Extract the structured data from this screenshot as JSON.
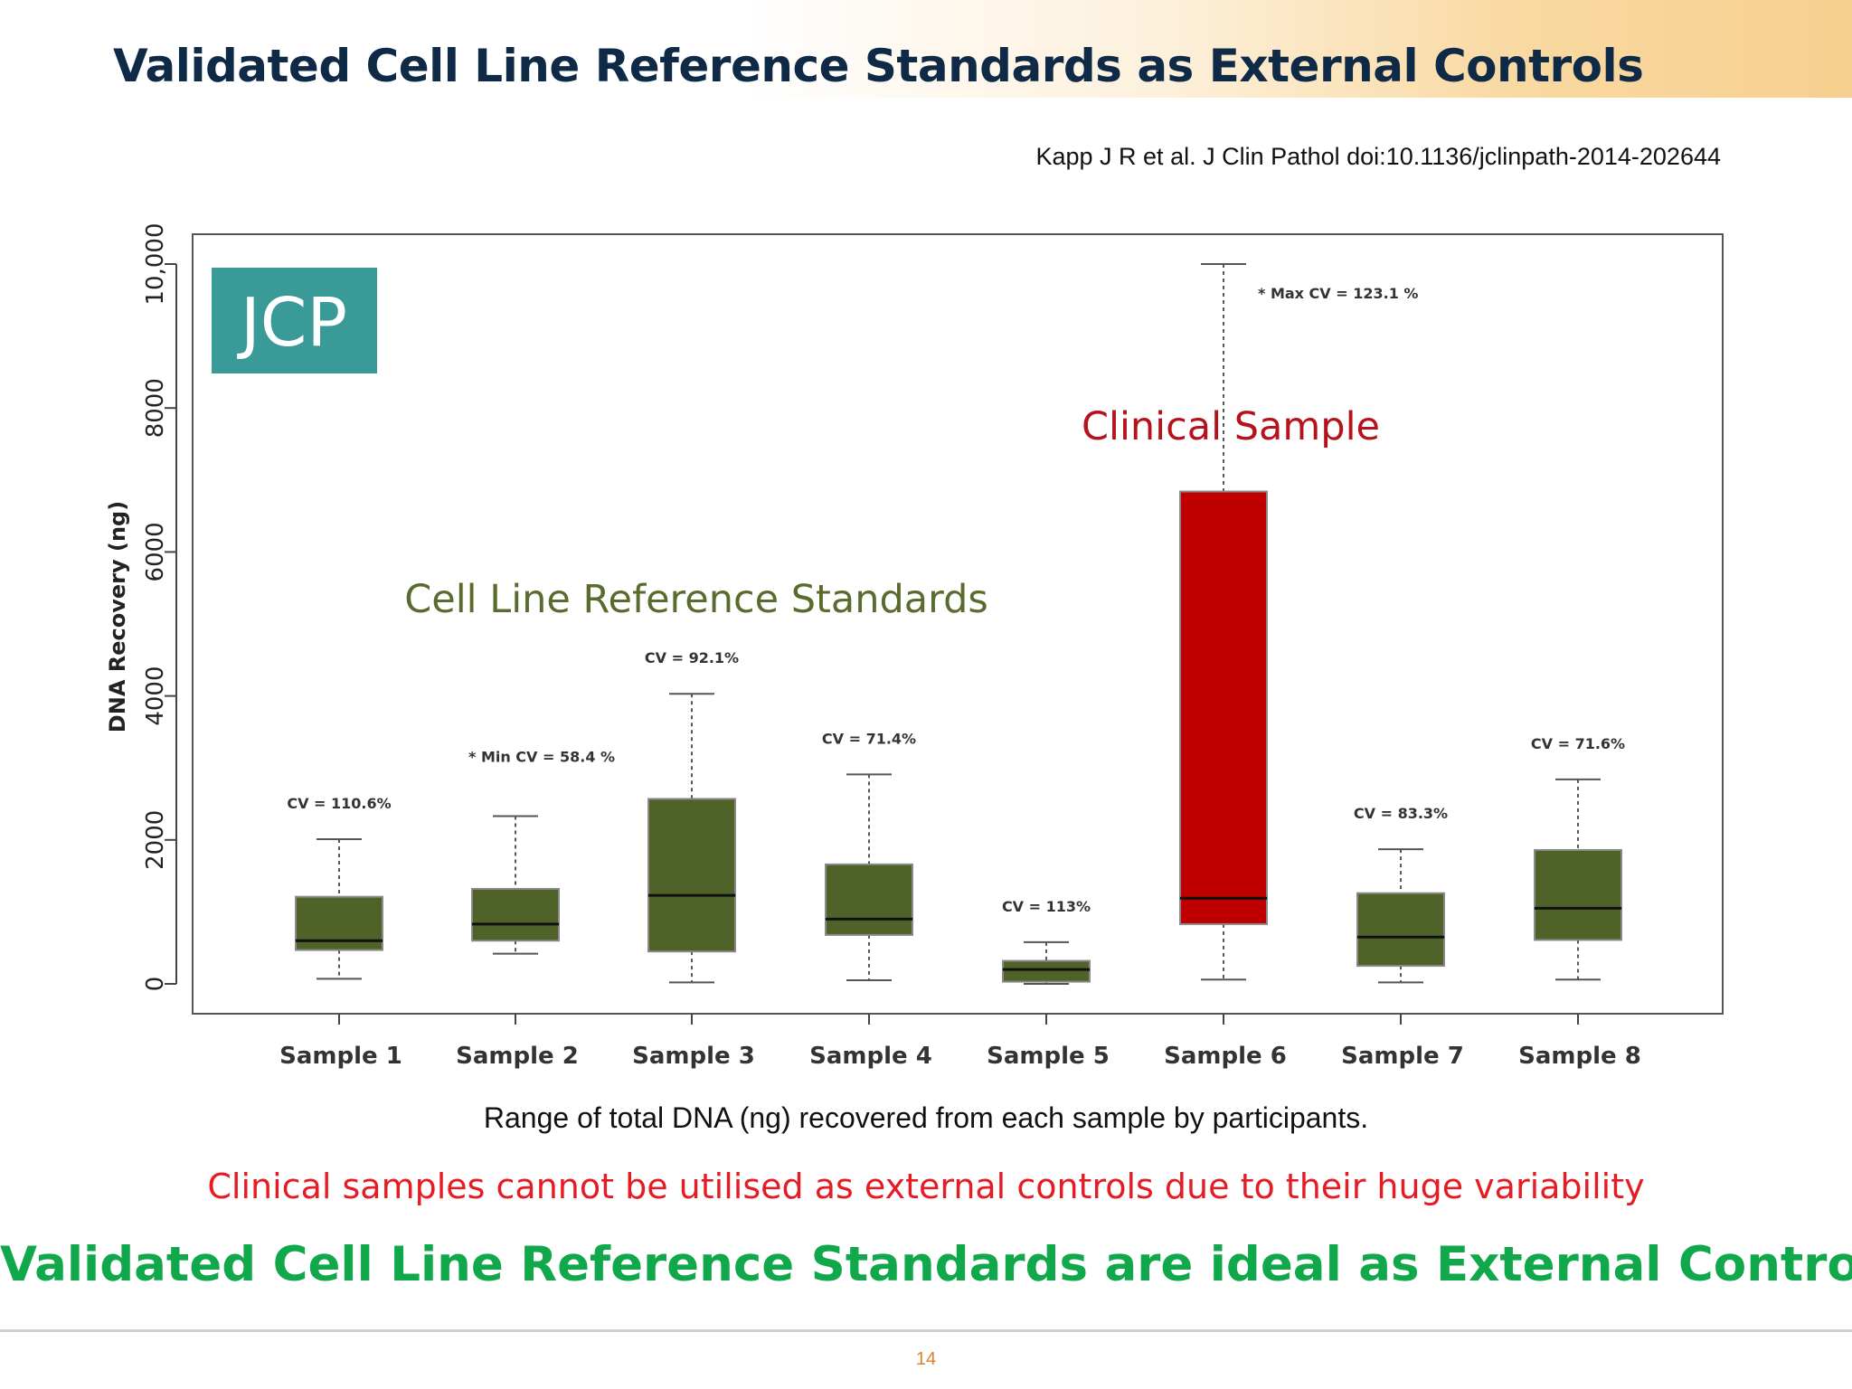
{
  "slide": {
    "title": "Validated Cell Line Reference Standards as External Controls",
    "citation": "Kapp J R et al. J Clin Pathol doi:10.1136/jclinpath-2014-202644",
    "caption": "Range of total DNA (ng) recovered from each sample by participants.",
    "statement_red": "Clinical samples cannot be utilised as external controls due to their huge variability",
    "statement_green": "Validated Cell Line Reference Standards are ideal as External Controls",
    "page_number": "14",
    "logo_text": "JCP"
  },
  "chart_data": {
    "type": "boxplot",
    "ylabel": "DNA Recovery (ng)",
    "xlabel": "",
    "ylim": [
      0,
      10000
    ],
    "yticks": [
      0,
      2000,
      4000,
      6000,
      8000,
      10000
    ],
    "ytick_labels": [
      "0",
      "2000",
      "4000",
      "6000",
      "8000",
      "10,000"
    ],
    "grid": false,
    "annotations": {
      "group_cell_line": "Cell Line Reference Standards",
      "group_clinical": "Clinical Sample"
    },
    "colors": {
      "cell_line": "#4f6228",
      "clinical": "#c00000",
      "cell_line_label": "#5a6b2e",
      "clinical_label": "#b5121b"
    },
    "categories": [
      "Sample 1",
      "Sample 2",
      "Sample 3",
      "Sample 4",
      "Sample 5",
      "Sample 6",
      "Sample 7",
      "Sample 8"
    ],
    "boxes": [
      {
        "category": "Sample 1",
        "min": 70,
        "q1": 470,
        "median": 600,
        "q3": 1210,
        "max": 2010,
        "label": "CV = 110.6%",
        "group": "cell_line"
      },
      {
        "category": "Sample 2",
        "min": 420,
        "q1": 600,
        "median": 830,
        "q3": 1320,
        "max": 2330,
        "label": "* Min CV = 58.4 %",
        "group": "cell_line"
      },
      {
        "category": "Sample 3",
        "min": 20,
        "q1": 450,
        "median": 1230,
        "q3": 2570,
        "max": 4030,
        "label": "CV = 92.1%",
        "group": "cell_line"
      },
      {
        "category": "Sample 4",
        "min": 50,
        "q1": 680,
        "median": 900,
        "q3": 1660,
        "max": 2910,
        "label": "CV = 71.4%",
        "group": "cell_line"
      },
      {
        "category": "Sample 5",
        "min": 0,
        "q1": 30,
        "median": 200,
        "q3": 320,
        "max": 580,
        "label": "CV = 113%",
        "group": "cell_line"
      },
      {
        "category": "Sample 6",
        "min": 60,
        "q1": 830,
        "median": 1190,
        "q3": 6840,
        "max": 10000,
        "label": "* Max CV = 123.1 %",
        "group": "clinical"
      },
      {
        "category": "Sample 7",
        "min": 20,
        "q1": 250,
        "median": 650,
        "q3": 1260,
        "max": 1870,
        "label": "CV = 83.3%",
        "group": "cell_line"
      },
      {
        "category": "Sample 8",
        "min": 60,
        "q1": 610,
        "median": 1050,
        "q3": 1860,
        "max": 2840,
        "label": "CV = 71.6%",
        "group": "cell_line"
      }
    ]
  }
}
